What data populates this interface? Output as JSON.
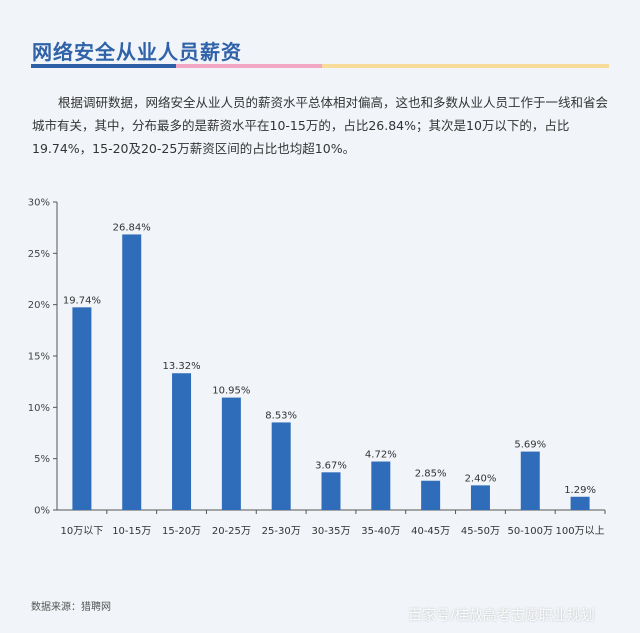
{
  "page": {
    "title": "网络安全从业人员薪资",
    "intro": "根据调研数据，网络安全从业人员的薪资水平总体相对偏高，这也和多数从业人员工作于一线和省会城市有关，其中，分布最多的是薪资水平在10-15万的，占比26.84%；其次是10万以下的，占比19.74%，15-20及20-25万薪资区间的占比也均超10%。",
    "source": "数据来源：猎聘网",
    "watermark": "百家号/桂赦高考志愿职业规划"
  },
  "colors": {
    "bar": "#2f6dbb",
    "title": "#2f62a8",
    "rule_blue": "#2d5ea6",
    "rule_pink": "#f2a7c5",
    "rule_yellow": "#f8dc9a"
  },
  "chart_data": {
    "type": "bar",
    "categories": [
      "10万以下",
      "10-15万",
      "15-20万",
      "20-25万",
      "25-30万",
      "30-35万",
      "35-40万",
      "40-45万",
      "45-50万",
      "50-100万",
      "100万以上"
    ],
    "values": [
      19.74,
      26.84,
      13.32,
      10.95,
      8.53,
      3.67,
      4.72,
      2.85,
      2.4,
      5.69,
      1.29
    ],
    "value_labels": [
      "19.74%",
      "26.84%",
      "13.32%",
      "10.95%",
      "8.53%",
      "3.67%",
      "4.72%",
      "2.85%",
      "2.40%",
      "5.69%",
      "1.29%"
    ],
    "y_ticks": [
      0,
      5,
      10,
      15,
      20,
      25,
      30
    ],
    "y_tick_labels": [
      "0%",
      "5%",
      "10%",
      "15%",
      "20%",
      "25%",
      "30%"
    ],
    "ylim": [
      0,
      30
    ],
    "grid": false
  }
}
